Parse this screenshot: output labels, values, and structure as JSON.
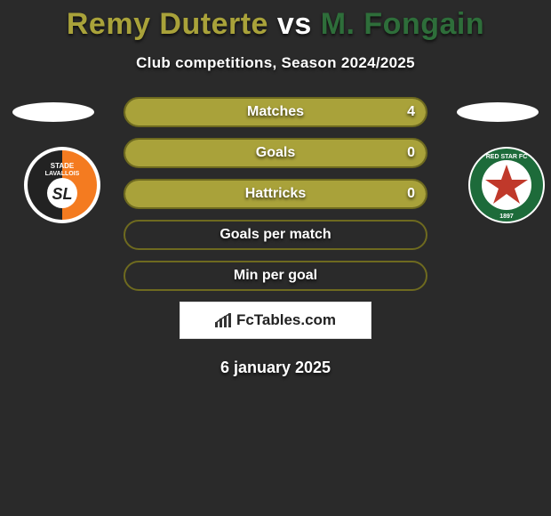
{
  "title": {
    "player1": "Remy Duterte",
    "vs": "vs",
    "player2": "M. Fongain",
    "player1_color": "#a9a23a",
    "player2_color": "#2e6e3a"
  },
  "subtitle": "Club competitions, Season 2024/2025",
  "stats": {
    "pill_border_color": "#6e6a1f",
    "pill_fill_color": "#a9a23a",
    "rows": [
      {
        "label": "Matches",
        "left": "",
        "right": "4",
        "left_pct": 0,
        "right_pct": 100
      },
      {
        "label": "Goals",
        "left": "",
        "right": "0",
        "left_pct": 0,
        "right_pct": 100
      },
      {
        "label": "Hattricks",
        "left": "",
        "right": "0",
        "left_pct": 0,
        "right_pct": 100
      },
      {
        "label": "Goals per match",
        "left": "",
        "right": "",
        "left_pct": 0,
        "right_pct": 0
      },
      {
        "label": "Min per goal",
        "left": "",
        "right": "",
        "left_pct": 0,
        "right_pct": 0
      }
    ]
  },
  "brand": "FcTables.com",
  "date": "6 january 2025",
  "clubs": {
    "left": {
      "name": "Stade Lavallois",
      "bg": "#ffffff",
      "panel_left": "#222222",
      "panel_right": "#f47b20",
      "text": "SL"
    },
    "right": {
      "name": "Red Star FC",
      "outer": "#ffffff",
      "ring": "#1d6b3a",
      "inner": "#ffffff",
      "star": "#c0392b",
      "year": "1897"
    }
  },
  "colors": {
    "background": "#2a2a2a"
  }
}
